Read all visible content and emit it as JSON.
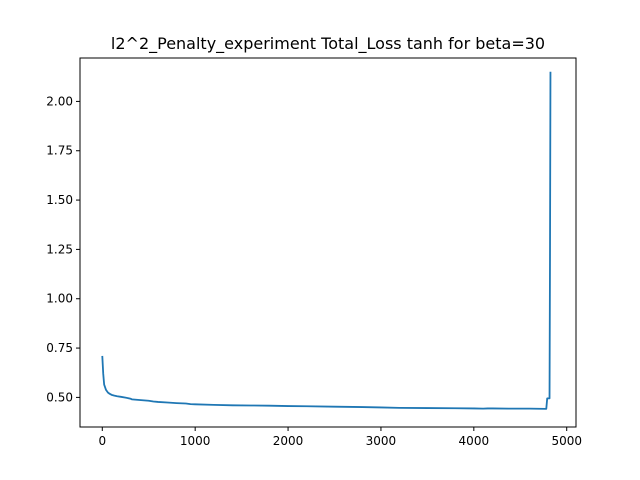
{
  "chart_data": {
    "type": "line",
    "title": "l2^2_Penalty_experiment Total_Loss tanh for beta=30",
    "xlabel": "",
    "ylabel": "",
    "xlim": [
      -240,
      5100
    ],
    "ylim": [
      0.35,
      2.22
    ],
    "xticks": [
      0,
      1000,
      2000,
      3000,
      4000,
      5000
    ],
    "xtick_labels": [
      "0",
      "1000",
      "2000",
      "3000",
      "4000",
      "5000"
    ],
    "yticks": [
      0.5,
      0.75,
      1.0,
      1.25,
      1.5,
      1.75,
      2.0
    ],
    "ytick_labels": [
      "0.50",
      "0.75",
      "1.00",
      "1.25",
      "1.50",
      "1.75",
      "2.00"
    ],
    "grid": false,
    "line_color": "#1f77b4",
    "series": [
      {
        "x": [
          0,
          10,
          20,
          40,
          60,
          80,
          100,
          130,
          160,
          200,
          250,
          300,
          320,
          400,
          500,
          550,
          600,
          700,
          800,
          900,
          950,
          1000,
          1200,
          1400,
          1600,
          1800,
          2000,
          2200,
          2500,
          2800,
          3000,
          3200,
          3500,
          3800,
          4000,
          4100,
          4150,
          4200,
          4400,
          4600,
          4780,
          4790,
          4800,
          4810,
          4815,
          4820,
          4825
        ],
        "y": [
          0.71,
          0.62,
          0.565,
          0.538,
          0.525,
          0.518,
          0.513,
          0.509,
          0.506,
          0.503,
          0.499,
          0.494,
          0.49,
          0.487,
          0.483,
          0.479,
          0.477,
          0.474,
          0.471,
          0.469,
          0.466,
          0.465,
          0.462,
          0.46,
          0.459,
          0.458,
          0.456,
          0.455,
          0.453,
          0.451,
          0.449,
          0.447,
          0.446,
          0.445,
          0.444,
          0.443,
          0.444,
          0.444,
          0.443,
          0.443,
          0.442,
          0.495,
          0.495,
          0.495,
          0.495,
          1.2,
          2.15
        ]
      }
    ]
  }
}
